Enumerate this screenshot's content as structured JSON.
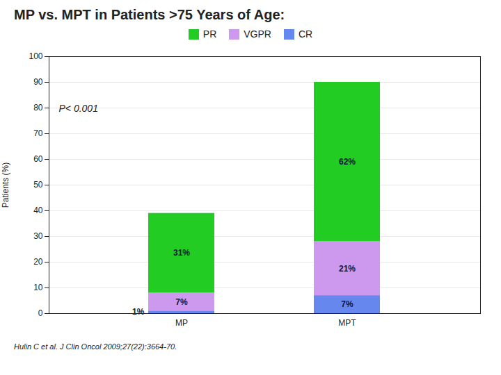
{
  "chart_data": {
    "type": "bar",
    "stacked": true,
    "title": "MP vs. MPT in Patients >75 Years of Age:",
    "categories": [
      "MP",
      "MPT"
    ],
    "series": [
      {
        "name": "CR",
        "color": "#6688ee",
        "values": [
          1,
          7
        ],
        "value_labels": [
          "1%",
          "7%"
        ]
      },
      {
        "name": "VGPR",
        "color": "#cc99ee",
        "values": [
          7,
          21
        ],
        "value_labels": [
          "7%",
          "21%"
        ]
      },
      {
        "name": "PR",
        "color": "#22cc22",
        "values": [
          31,
          62
        ],
        "value_labels": [
          "31%",
          "62%"
        ]
      }
    ],
    "ylabel": "Patients (%)",
    "ylim": [
      0,
      100
    ],
    "yticks": [
      0,
      10,
      20,
      30,
      40,
      50,
      60,
      70,
      80,
      90,
      100
    ],
    "grid": true,
    "legend": "top",
    "data_labels": true,
    "annotation": "P< 0.001",
    "footnote": "Hulin C et al. J Clin Oncol 2009;27(22):3664-70."
  }
}
